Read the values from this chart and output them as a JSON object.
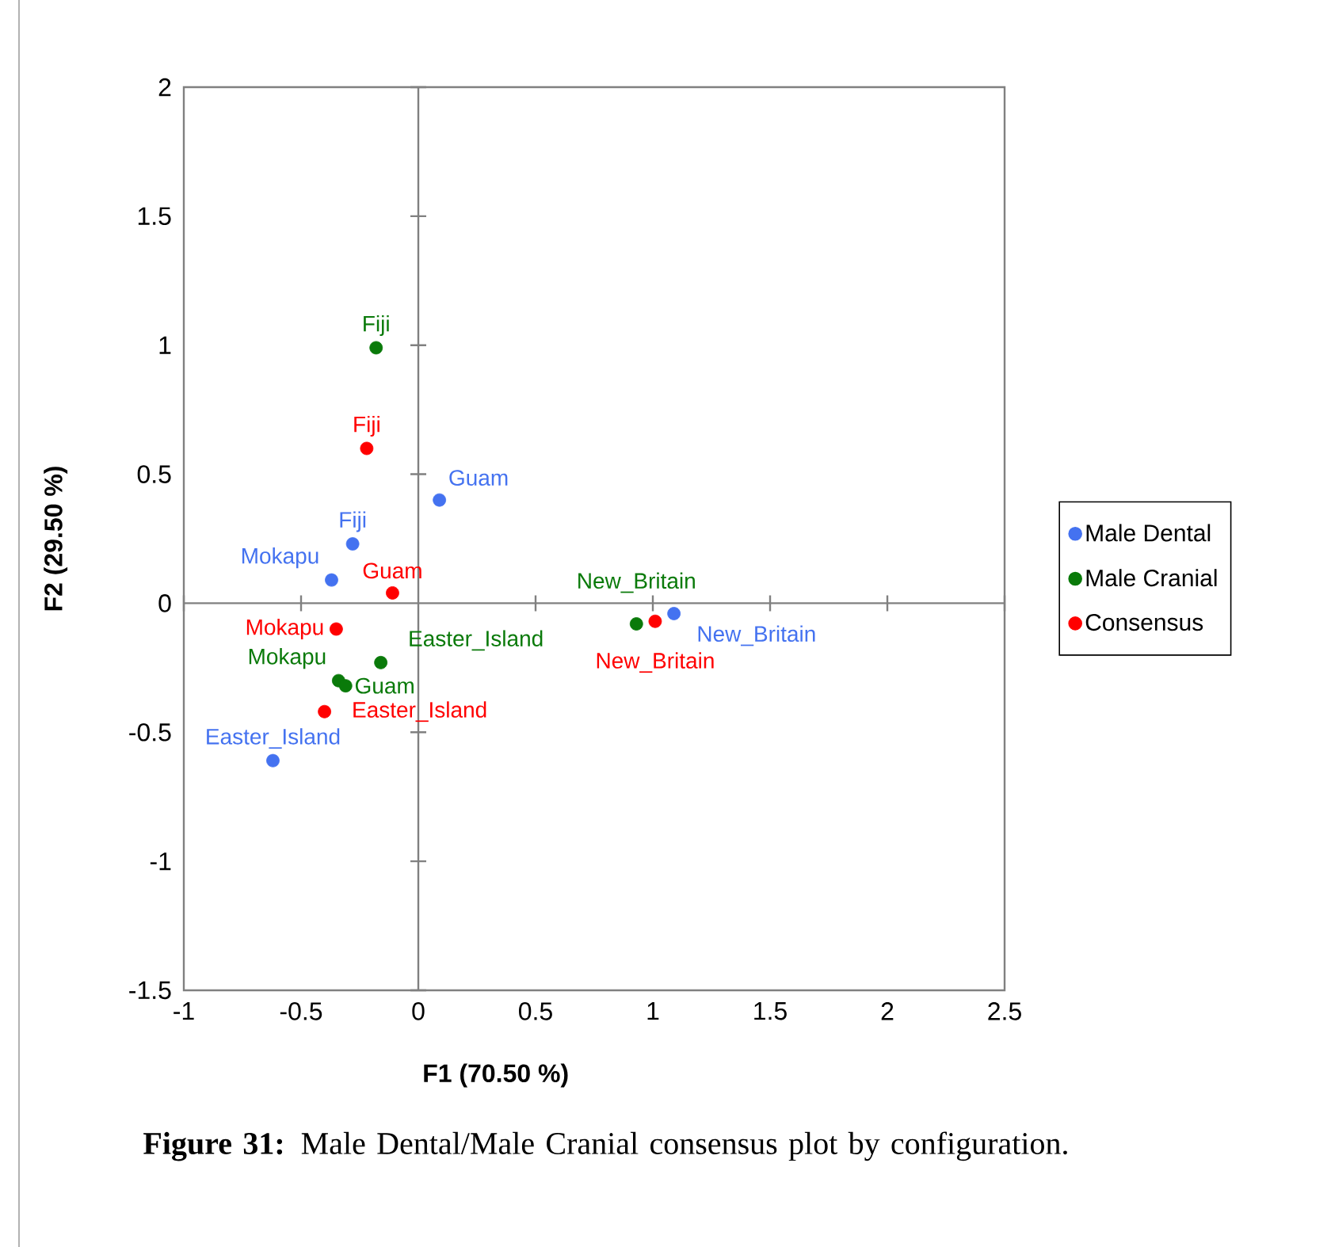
{
  "chart_data": {
    "type": "scatter",
    "xlabel": "F1 (70.50 %)",
    "ylabel": "F2 (29.50 %)",
    "xlim": [
      -1,
      2.5
    ],
    "xticks": [
      -1,
      -0.5,
      0,
      0.5,
      1,
      1.5,
      2,
      2.5
    ],
    "ylim": [
      -1.5,
      2
    ],
    "yticks": [
      -1.5,
      -1,
      -0.5,
      0,
      0.5,
      1,
      1.5,
      2
    ],
    "marker": "circle",
    "legend": "right",
    "annotations": [
      "**Figure 31:** Male Dental/Male Cranial consensus plot by configuration."
    ],
    "series": [
      {
        "name": "Male Dental",
        "color": "#4472f0",
        "x": [
          0.09,
          -0.28,
          -0.37,
          -0.62,
          1.09
        ],
        "values": [
          0.4,
          0.23,
          0.09,
          -0.61,
          -0.04
        ],
        "value_labels": [
          "Guam",
          "Fiji",
          "Mokapu",
          "Easter_Island",
          "New_Britain"
        ]
      },
      {
        "name": "Male Cranial",
        "color": "#0a7a0a",
        "x": [
          -0.18,
          -0.16,
          -0.34,
          -0.31,
          0.93
        ],
        "values": [
          0.99,
          -0.23,
          -0.3,
          -0.32,
          -0.08
        ],
        "value_labels": [
          "Fiji",
          "Easter_Island",
          "Mokapu",
          "Guam",
          "New_Britain"
        ]
      },
      {
        "name": "Consensus",
        "color": "#ff0000",
        "x": [
          -0.22,
          -0.11,
          -0.35,
          -0.4,
          1.01
        ],
        "values": [
          0.6,
          0.04,
          -0.1,
          -0.42,
          -0.07
        ],
        "value_labels": [
          "Fiji",
          "Guam",
          "Mokapu",
          "Easter_Island",
          "New_Britain"
        ]
      }
    ]
  }
}
